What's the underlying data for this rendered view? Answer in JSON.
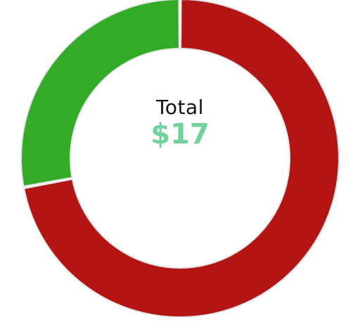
{
  "chart_data": {
    "type": "donut",
    "slices": [
      {
        "value": 12.25,
        "color": "#b31414"
      },
      {
        "value": 4.75,
        "color": "#33ab29"
      }
    ],
    "center": {
      "title": "Total",
      "value": "$17",
      "value_color": "#6fd39a"
    }
  }
}
